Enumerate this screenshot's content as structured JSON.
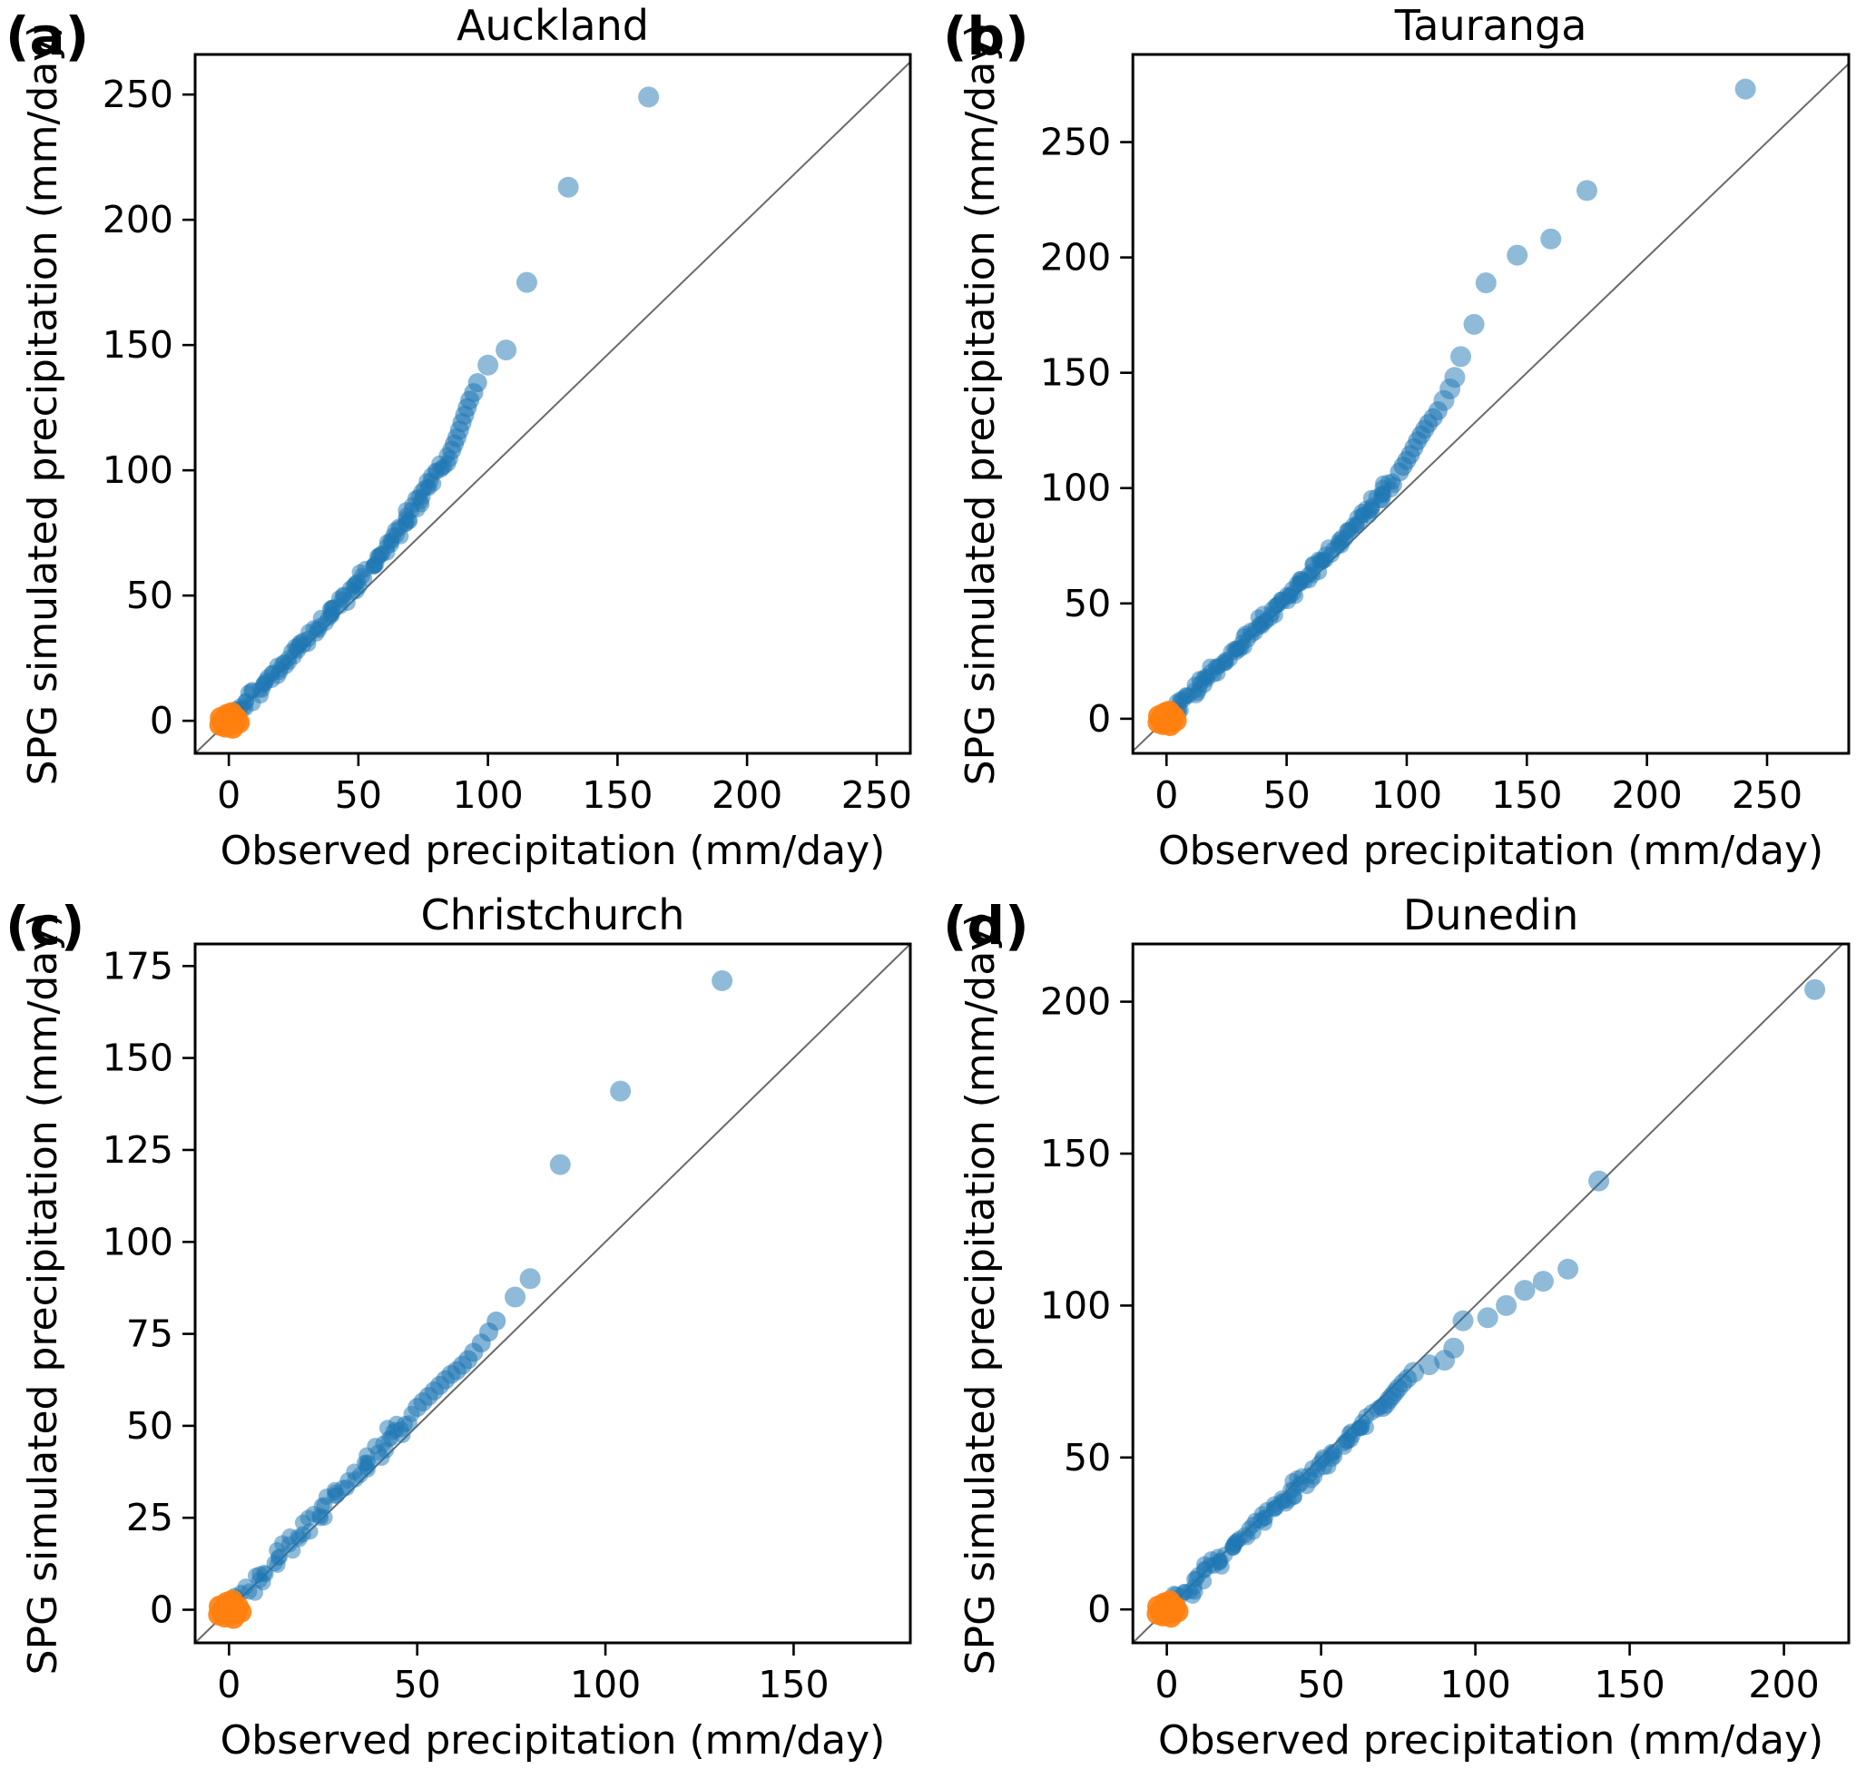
{
  "figure": {
    "background": "#ffffff",
    "layout": "2x2 grid of Q-Q scatter plots"
  },
  "colors": {
    "quantile_blue": "#1f77b4",
    "quantile_blue_light_appearance": "#8fbbda",
    "origin_orange": "#ff7f0e",
    "identity_line": "#6a6a6a",
    "spine": "#000000",
    "text": "#000000"
  },
  "chart_data": [
    {
      "id": "auckland",
      "panel_label": "(a)",
      "title": "Auckland",
      "type": "scatter",
      "xlabel": "Observed precipitation (mm/day)",
      "ylabel": "SPG simulated precipitation (mm/day)",
      "xlim": [
        -13,
        263
      ],
      "ylim": [
        -13,
        266
      ],
      "xticks": [
        0,
        50,
        100,
        150,
        200,
        250
      ],
      "yticks": [
        0,
        50,
        100,
        150,
        200,
        250
      ],
      "grid": false,
      "legend": false,
      "identity_line": true,
      "series": {
        "quantiles": {
          "name": "simulated-vs-observed-quantiles",
          "color": "#1f77b4",
          "band": [
            [
              0,
              0
            ],
            [
              4,
              4.3
            ],
            [
              8,
              8.6
            ],
            [
              12,
              12.9
            ],
            [
              16,
              17.2
            ],
            [
              20,
              21.5
            ],
            [
              24,
              26
            ],
            [
              28,
              30.4
            ],
            [
              32,
              34.8
            ],
            [
              36,
              39.2
            ],
            [
              40,
              43.6
            ],
            [
              44,
              48
            ],
            [
              48,
              52.6
            ],
            [
              52,
              57.4
            ],
            [
              55,
              61
            ],
            [
              58,
              64.8
            ],
            [
              61,
              69
            ],
            [
              64,
              73.6
            ],
            [
              67,
              78.4
            ],
            [
              70,
              83.2
            ],
            [
              73,
              87.8
            ],
            [
              76,
              92.2
            ],
            [
              79,
              96.6
            ],
            [
              82,
              101.2
            ],
            [
              85,
              106
            ]
          ],
          "mid": [
            [
              86,
              108
            ],
            [
              87,
              110.5
            ],
            [
              88,
              113
            ],
            [
              89,
              116
            ],
            [
              90,
              119
            ],
            [
              91,
              122
            ],
            [
              92,
              125
            ],
            [
              93,
              128
            ],
            [
              94.5,
              131
            ],
            [
              96,
              135
            ]
          ],
          "outliers": [
            [
              100,
              142
            ],
            [
              107,
              148
            ],
            [
              115,
              175
            ],
            [
              131,
              213
            ],
            [
              162,
              249
            ]
          ]
        },
        "origin_cluster": {
          "name": "near-zero-quantiles",
          "color": "#ff7f0e",
          "center": [
            0,
            0
          ],
          "spread": [
            4,
            3.5
          ]
        }
      }
    },
    {
      "id": "tauranga",
      "panel_label": "(b)",
      "title": "Tauranga",
      "type": "scatter",
      "xlabel": "Observed precipitation (mm/day)",
      "ylabel": "SPG simulated precipitation (mm/day)",
      "xlim": [
        -14,
        284
      ],
      "ylim": [
        -15,
        288
      ],
      "xticks": [
        0,
        50,
        100,
        150,
        200,
        250
      ],
      "yticks": [
        0,
        50,
        100,
        150,
        200,
        250
      ],
      "grid": false,
      "legend": false,
      "identity_line": true,
      "series": {
        "quantiles": {
          "name": "simulated-vs-observed-quantiles",
          "color": "#1f77b4",
          "band": [
            [
              0,
              0
            ],
            [
              4,
              4.1
            ],
            [
              8,
              8.2
            ],
            [
              12,
              12.4
            ],
            [
              16,
              16.6
            ],
            [
              20,
              20.8
            ],
            [
              24,
              25
            ],
            [
              28,
              29.2
            ],
            [
              32,
              33.5
            ],
            [
              36,
              37.8
            ],
            [
              40,
              42
            ],
            [
              44,
              46.2
            ],
            [
              48,
              50.4
            ],
            [
              52,
              54.7
            ],
            [
              56,
              59
            ],
            [
              60,
              63.3
            ],
            [
              64,
              67.7
            ],
            [
              68,
              72.1
            ],
            [
              72,
              76.6
            ],
            [
              76,
              81.2
            ],
            [
              80,
              85.8
            ],
            [
              84,
              90.6
            ],
            [
              88,
              95.4
            ],
            [
              92,
              100.3
            ],
            [
              95,
              104
            ]
          ],
          "mid": [
            [
              97,
              107
            ],
            [
              98.5,
              109.5
            ],
            [
              100,
              112
            ],
            [
              101.5,
              114.5
            ],
            [
              103,
              117.5
            ],
            [
              104.5,
              120.5
            ],
            [
              106,
              123
            ],
            [
              107.5,
              125.5
            ],
            [
              109,
              128
            ],
            [
              111,
              130.5
            ],
            [
              113,
              133.5
            ]
          ],
          "outliers": [
            [
              115.5,
              138
            ],
            [
              118,
              143
            ],
            [
              120,
              148
            ],
            [
              122.5,
              157
            ],
            [
              128,
              171
            ],
            [
              133,
              189
            ],
            [
              146,
              201
            ],
            [
              160,
              208
            ],
            [
              175,
              229
            ],
            [
              241,
              273
            ]
          ]
        },
        "origin_cluster": {
          "name": "near-zero-quantiles",
          "color": "#ff7f0e",
          "center": [
            0,
            0
          ],
          "spread": [
            4,
            3.5
          ]
        }
      }
    },
    {
      "id": "christchurch",
      "panel_label": "(c)",
      "title": "Christchurch",
      "type": "scatter",
      "xlabel": "Observed precipitation (mm/day)",
      "ylabel": "SPG simulated precipitation (mm/day)",
      "xlim": [
        -9,
        181
      ],
      "ylim": [
        -9,
        181
      ],
      "xticks": [
        0,
        50,
        100,
        150
      ],
      "yticks": [
        0,
        25,
        50,
        75,
        100,
        125,
        150,
        175
      ],
      "grid": false,
      "legend": false,
      "identity_line": true,
      "series": {
        "quantiles": {
          "name": "simulated-vs-observed-quantiles",
          "color": "#1f77b4",
          "band": [
            [
              0,
              0
            ],
            [
              3,
              3.3
            ],
            [
              6,
              6.6
            ],
            [
              9,
              9.9
            ],
            [
              12,
              13.1
            ],
            [
              15,
              16.3
            ],
            [
              18,
              19.5
            ],
            [
              21,
              22.8
            ],
            [
              24,
              26.1
            ],
            [
              27,
              29.4
            ],
            [
              30,
              32.7
            ],
            [
              33,
              36
            ],
            [
              36,
              39.4
            ],
            [
              39,
              42.8
            ],
            [
              42,
              46.2
            ],
            [
              45,
              49.6
            ],
            [
              48,
              53
            ]
          ],
          "mid": [
            [
              50,
              55
            ],
            [
              51.5,
              56.5
            ],
            [
              53,
              58
            ],
            [
              54.5,
              59.5
            ],
            [
              56,
              61
            ],
            [
              57.5,
              62.5
            ],
            [
              59,
              64
            ],
            [
              60.5,
              65
            ],
            [
              62,
              66.5
            ],
            [
              63.5,
              68
            ],
            [
              65,
              70
            ],
            [
              67,
              72.5
            ],
            [
              69,
              75.5
            ],
            [
              71,
              78.5
            ]
          ],
          "outliers": [
            [
              76,
              85
            ],
            [
              80,
              90
            ],
            [
              88,
              121
            ],
            [
              104,
              141
            ],
            [
              131,
              171
            ]
          ]
        },
        "origin_cluster": {
          "name": "near-zero-quantiles",
          "color": "#ff7f0e",
          "center": [
            0,
            0
          ],
          "spread": [
            3.2,
            2.8
          ]
        }
      }
    },
    {
      "id": "dunedin",
      "panel_label": "(d)",
      "title": "Dunedin",
      "type": "scatter",
      "xlabel": "Observed precipitation (mm/day)",
      "ylabel": "SPG simulated precipitation (mm/day)",
      "xlim": [
        -11,
        221
      ],
      "ylim": [
        -11,
        219
      ],
      "xticks": [
        0,
        50,
        100,
        150,
        200
      ],
      "yticks": [
        0,
        50,
        100,
        150,
        200
      ],
      "grid": false,
      "legend": false,
      "identity_line": true,
      "series": {
        "quantiles": {
          "name": "simulated-vs-observed-quantiles",
          "color": "#1f77b4",
          "band": [
            [
              0,
              0
            ],
            [
              4,
              3.8
            ],
            [
              8,
              7.6
            ],
            [
              12,
              11.4
            ],
            [
              16,
              15.3
            ],
            [
              20,
              19.1
            ],
            [
              24,
              22.9
            ],
            [
              28,
              26.7
            ],
            [
              32,
              30.5
            ],
            [
              36,
              34.3
            ],
            [
              40,
              38.1
            ],
            [
              44,
              41.9
            ],
            [
              48,
              45.7
            ],
            [
              52,
              49.5
            ],
            [
              56,
              53.3
            ],
            [
              60,
              57.1
            ],
            [
              63,
              60
            ],
            [
              66,
              62.8
            ],
            [
              69,
              65.6
            ]
          ],
          "mid": [
            [
              70,
              66.5
            ],
            [
              71,
              67.5
            ],
            [
              72,
              69
            ],
            [
              73,
              70.2
            ],
            [
              74,
              71.5
            ],
            [
              75,
              72.8
            ],
            [
              76.5,
              74.5
            ],
            [
              78,
              76
            ]
          ],
          "outliers": [
            [
              80,
              78
            ],
            [
              85,
              80.5
            ],
            [
              90,
              82
            ],
            [
              93,
              86
            ],
            [
              96,
              95
            ],
            [
              104,
              96
            ],
            [
              110,
              100
            ],
            [
              116,
              105
            ],
            [
              122,
              108
            ],
            [
              130,
              112
            ],
            [
              140,
              141
            ],
            [
              210,
              204
            ]
          ]
        },
        "origin_cluster": {
          "name": "near-zero-quantiles",
          "color": "#ff7f0e",
          "center": [
            0,
            0
          ],
          "spread": [
            3.6,
            3
          ]
        }
      }
    }
  ]
}
